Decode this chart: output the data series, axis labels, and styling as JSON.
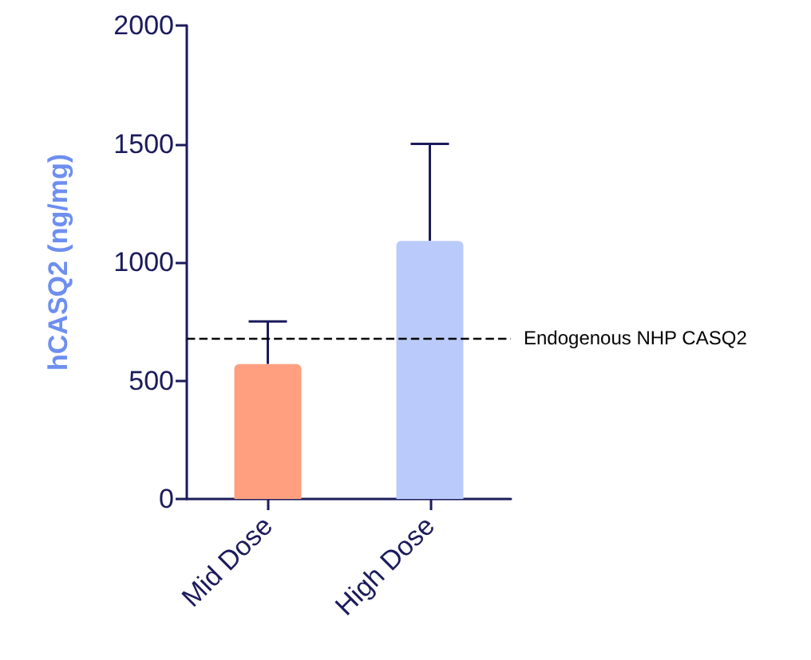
{
  "chart_data": {
    "type": "bar",
    "ylabel": "hCASQ2 (ng/mg)",
    "categories": [
      "Mid Dose",
      "High Dose"
    ],
    "values": [
      570,
      1090
    ],
    "colors": [
      "#ff9f7f",
      "#bacbfb"
    ],
    "errors": [
      [
        570,
        750
      ],
      [
        1090,
        1500
      ]
    ],
    "ylim": [
      0,
      2000
    ],
    "yticks": [
      0,
      500,
      1000,
      1500,
      2000
    ],
    "grid": false,
    "ref_lines": [
      {
        "axis": "y",
        "value": 680,
        "label": "Endogenous NHP CASQ2",
        "color": "#000000",
        "line_style": "dashed"
      }
    ]
  }
}
